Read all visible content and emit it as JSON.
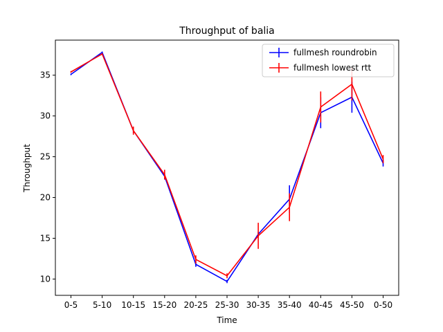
{
  "chart_data": {
    "type": "line",
    "title": "Throughput of balia",
    "xlabel": "Time",
    "ylabel": "Throughput",
    "categories": [
      "0-5",
      "5-10",
      "10-15",
      "15-20",
      "20-25",
      "25-30",
      "30-35",
      "35-40",
      "40-45",
      "45-50",
      "0-50"
    ],
    "ylim": [
      8.0,
      39.3
    ],
    "yticks": [
      10,
      15,
      20,
      25,
      30,
      35
    ],
    "grid": false,
    "legend_position": "top-right",
    "series": [
      {
        "name": "fullmesh roundrobin",
        "color": "#0000ff",
        "values": [
          35.1,
          37.8,
          28.2,
          22.6,
          11.8,
          9.7,
          15.5,
          19.8,
          30.4,
          32.3,
          24.2
        ],
        "errors": [
          0.1,
          0.1,
          0.3,
          0.4,
          0.3,
          0.2,
          0.3,
          1.7,
          1.9,
          1.9,
          0.4
        ]
      },
      {
        "name": "fullmesh lowest rtt",
        "color": "#ff0000",
        "values": [
          35.4,
          37.6,
          28.2,
          22.8,
          12.4,
          10.4,
          15.3,
          18.8,
          31.1,
          33.9,
          24.7
        ],
        "errors": [
          0.1,
          0.1,
          0.5,
          0.6,
          0.5,
          0.3,
          1.6,
          1.7,
          1.9,
          2.0,
          0.5
        ]
      }
    ]
  }
}
